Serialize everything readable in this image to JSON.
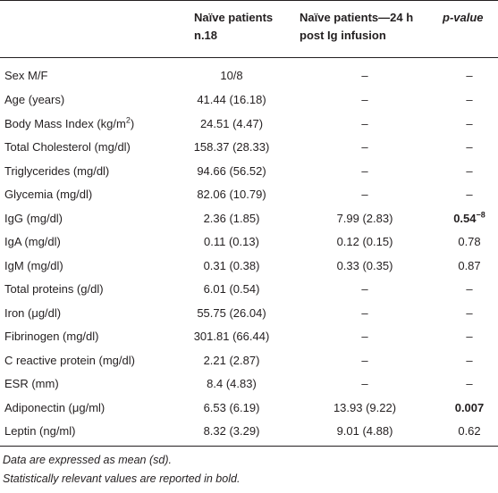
{
  "table": {
    "headers": {
      "blank": "",
      "naive_line1": "Naïve patients",
      "naive_line2": "n.18",
      "post_line1": "Naïve patients—24 h",
      "post_line2": "post Ig infusion",
      "pvalue": "p-value"
    },
    "rows": [
      {
        "label": "Sex M/F",
        "naive": "10/8",
        "post": "–",
        "p": "–",
        "p_bold": false
      },
      {
        "label": "Age (years)",
        "naive": "41.44 (16.18)",
        "post": "–",
        "p": "–",
        "p_bold": false
      },
      {
        "label_pre": "Body Mass Index (kg/m",
        "label_sup": "2",
        "label_post": ")",
        "naive": "24.51 (4.47)",
        "post": "–",
        "p": "–",
        "p_bold": false
      },
      {
        "label": "Total Cholesterol (mg/dl)",
        "naive": "158.37 (28.33)",
        "post": "–",
        "p": "–",
        "p_bold": false
      },
      {
        "label": "Triglycerides (mg/dl)",
        "naive": "94.66 (56.52)",
        "post": "–",
        "p": "–",
        "p_bold": false
      },
      {
        "label": "Glycemia (mg/dl)",
        "naive": "82.06 (10.79)",
        "post": "–",
        "p": "–",
        "p_bold": false
      },
      {
        "label": "IgG (mg/dl)",
        "naive": "2.36 (1.85)",
        "post": "7.99 (2.83)",
        "p_base": "0.54",
        "p_sup": "−8",
        "p_bold": true
      },
      {
        "label": "IgA (mg/dl)",
        "naive": "0.11 (0.13)",
        "post": "0.12 (0.15)",
        "p": "0.78",
        "p_bold": false
      },
      {
        "label": "IgM (mg/dl)",
        "naive": "0.31 (0.38)",
        "post": "0.33 (0.35)",
        "p": "0.87",
        "p_bold": false
      },
      {
        "label": "Total proteins (g/dl)",
        "naive": "6.01 (0.54)",
        "post": "–",
        "p": "–",
        "p_bold": false
      },
      {
        "label": "Iron (μg/dl)",
        "naive": "55.75 (26.04)",
        "post": "–",
        "p": "–",
        "p_bold": false
      },
      {
        "label": "Fibrinogen (mg/dl)",
        "naive": "301.81 (66.44)",
        "post": "–",
        "p": "–",
        "p_bold": false
      },
      {
        "label": "C reactive protein (mg/dl)",
        "naive": "2.21 (2.87)",
        "post": "–",
        "p": "–",
        "p_bold": false
      },
      {
        "label": "ESR (mm)",
        "naive": "8.4 (4.83)",
        "post": "–",
        "p": "–",
        "p_bold": false
      },
      {
        "label": "Adiponectin (μg/ml)",
        "naive": "6.53 (6.19)",
        "post": "13.93 (9.22)",
        "p": "0.007",
        "p_bold": true
      },
      {
        "label": "Leptin (ng/ml)",
        "naive": "8.32 (3.29)",
        "post": "9.01 (4.88)",
        "p": "0.62",
        "p_bold": false
      }
    ]
  },
  "notes": [
    "Data are expressed as mean (sd).",
    "Statistically relevant values are reported in bold."
  ]
}
